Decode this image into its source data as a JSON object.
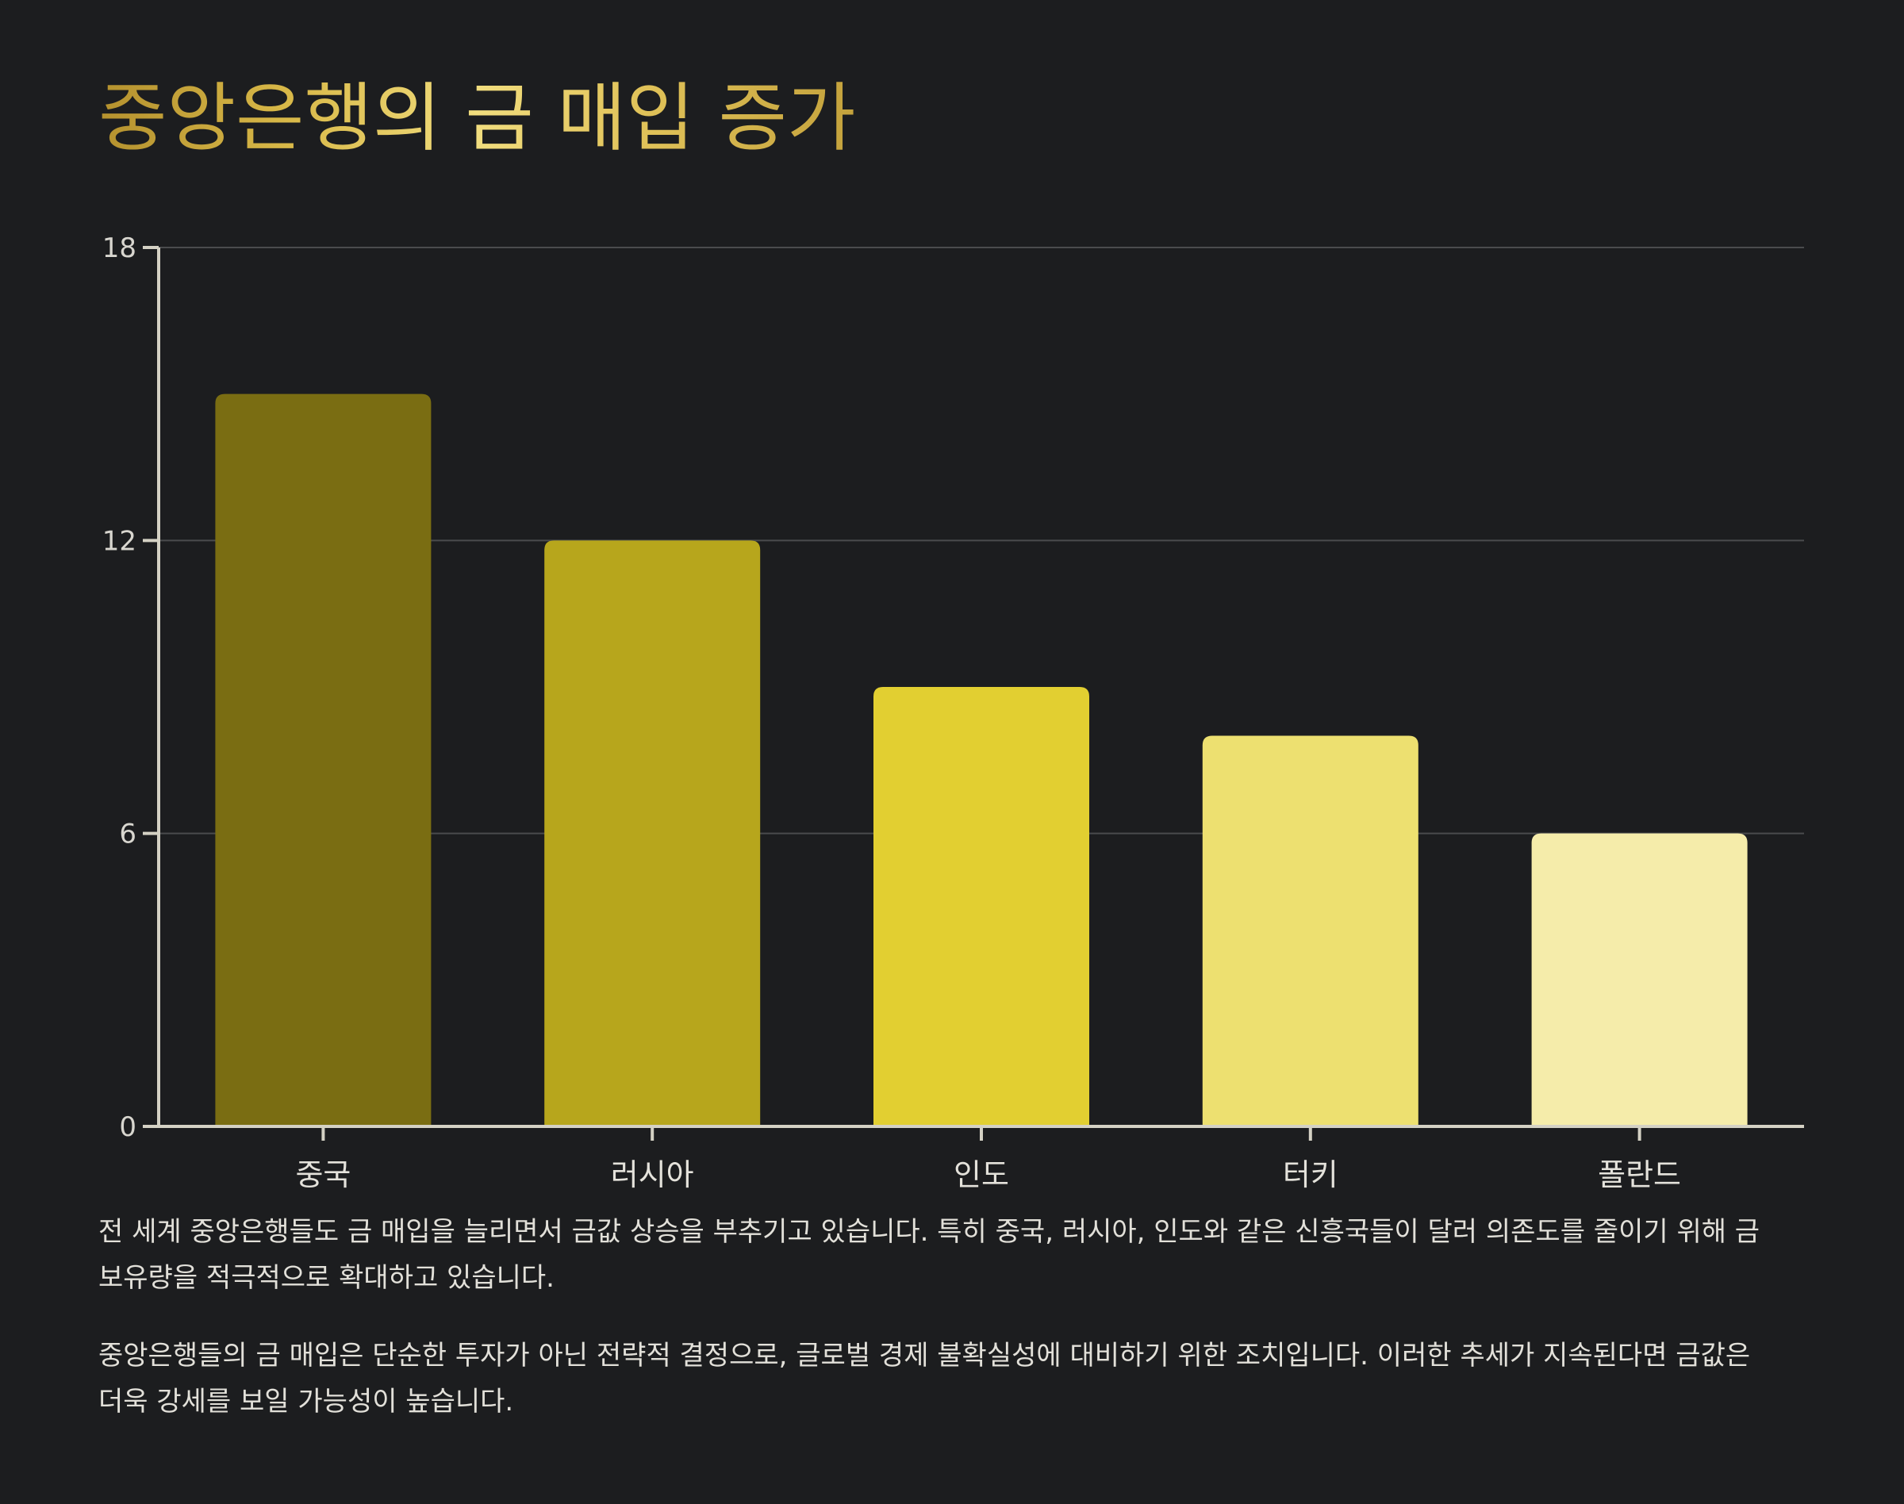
{
  "title": "중앙은행의 금 매입 증가",
  "chart_data": {
    "type": "bar",
    "categories": [
      "중국",
      "러시아",
      "인도",
      "터키",
      "폴란드"
    ],
    "values": [
      15,
      12,
      9,
      8,
      6
    ],
    "ylim": [
      0,
      18
    ],
    "yticks": [
      "0",
      "6",
      "12",
      "18"
    ],
    "grid": true,
    "colors": [
      "#7a6d12",
      "#b7a61c",
      "#e2cf31",
      "#ede070",
      "#f5ecaa"
    ],
    "xlabel": "",
    "ylabel": ""
  },
  "paragraphs": [
    "전 세계 중앙은행들도 금 매입을 늘리면서 금값 상승을 부추기고 있습니다. 특히 중국, 러시아, 인도와 같은 신흥국들이 달러 의존도를 줄이기 위해 금 보유량을 적극적으로 확대하고 있습니다.",
    "중앙은행들의 금 매입은 단순한 투자가 아닌 전략적 결정으로, 글로벌 경제 불확실성에 대비하기 위한 조치입니다. 이러한 추세가 지속된다면 금값은 더욱 강세를 보일 가능성이 높습니다."
  ]
}
